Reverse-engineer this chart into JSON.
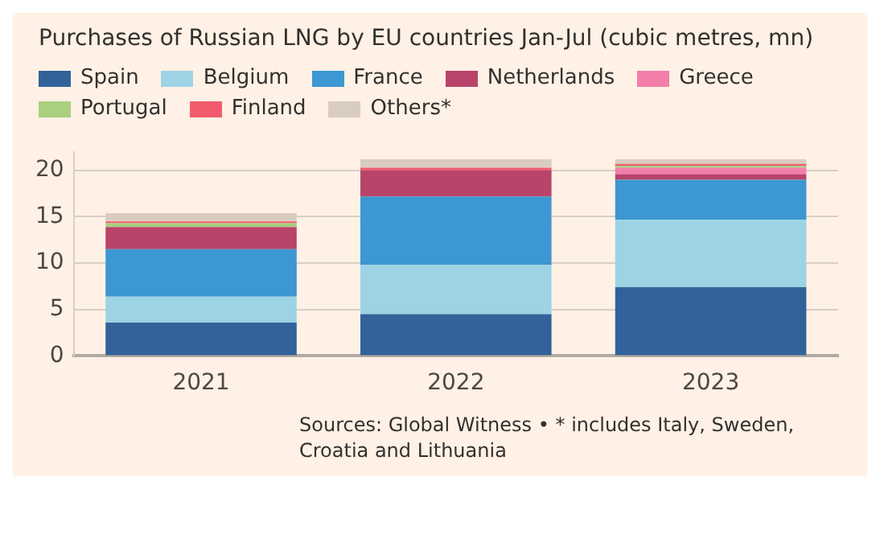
{
  "chart_data": {
    "type": "bar",
    "title": "Purchases of Russian LNG by EU countries Jan-Jul (cubic metres, mn)",
    "categories": [
      "2021",
      "2022",
      "2023"
    ],
    "stacked": true,
    "ylim": [
      0,
      22
    ],
    "yticks": [
      0,
      5,
      10,
      15,
      20
    ],
    "grid": "y",
    "legend": "top",
    "series": [
      {
        "name": "Spain",
        "color": "#33629a",
        "values": [
          3.6,
          4.5,
          7.4
        ]
      },
      {
        "name": "Belgium",
        "color": "#9dd3e4",
        "values": [
          2.8,
          5.3,
          7.3
        ]
      },
      {
        "name": "France",
        "color": "#3d97d3",
        "values": [
          5.1,
          7.4,
          4.3
        ]
      },
      {
        "name": "Netherlands",
        "color": "#b8446a",
        "values": [
          2.4,
          2.8,
          0.6
        ]
      },
      {
        "name": "Greece",
        "color": "#f27ea9",
        "values": [
          0,
          0,
          0.7
        ]
      },
      {
        "name": "Portugal",
        "color": "#a9cf7f",
        "values": [
          0.4,
          0,
          0.2
        ]
      },
      {
        "name": "Finland",
        "color": "#f15b6c",
        "values": [
          0.2,
          0.3,
          0.2
        ]
      },
      {
        "name": "Others*",
        "color": "#d9ccc1",
        "values": [
          0.9,
          0.9,
          0.5
        ]
      }
    ],
    "annotations": [
      "Sources: Global Witness • * includes Italy, Sweden, Croatia and Lithuania"
    ]
  }
}
